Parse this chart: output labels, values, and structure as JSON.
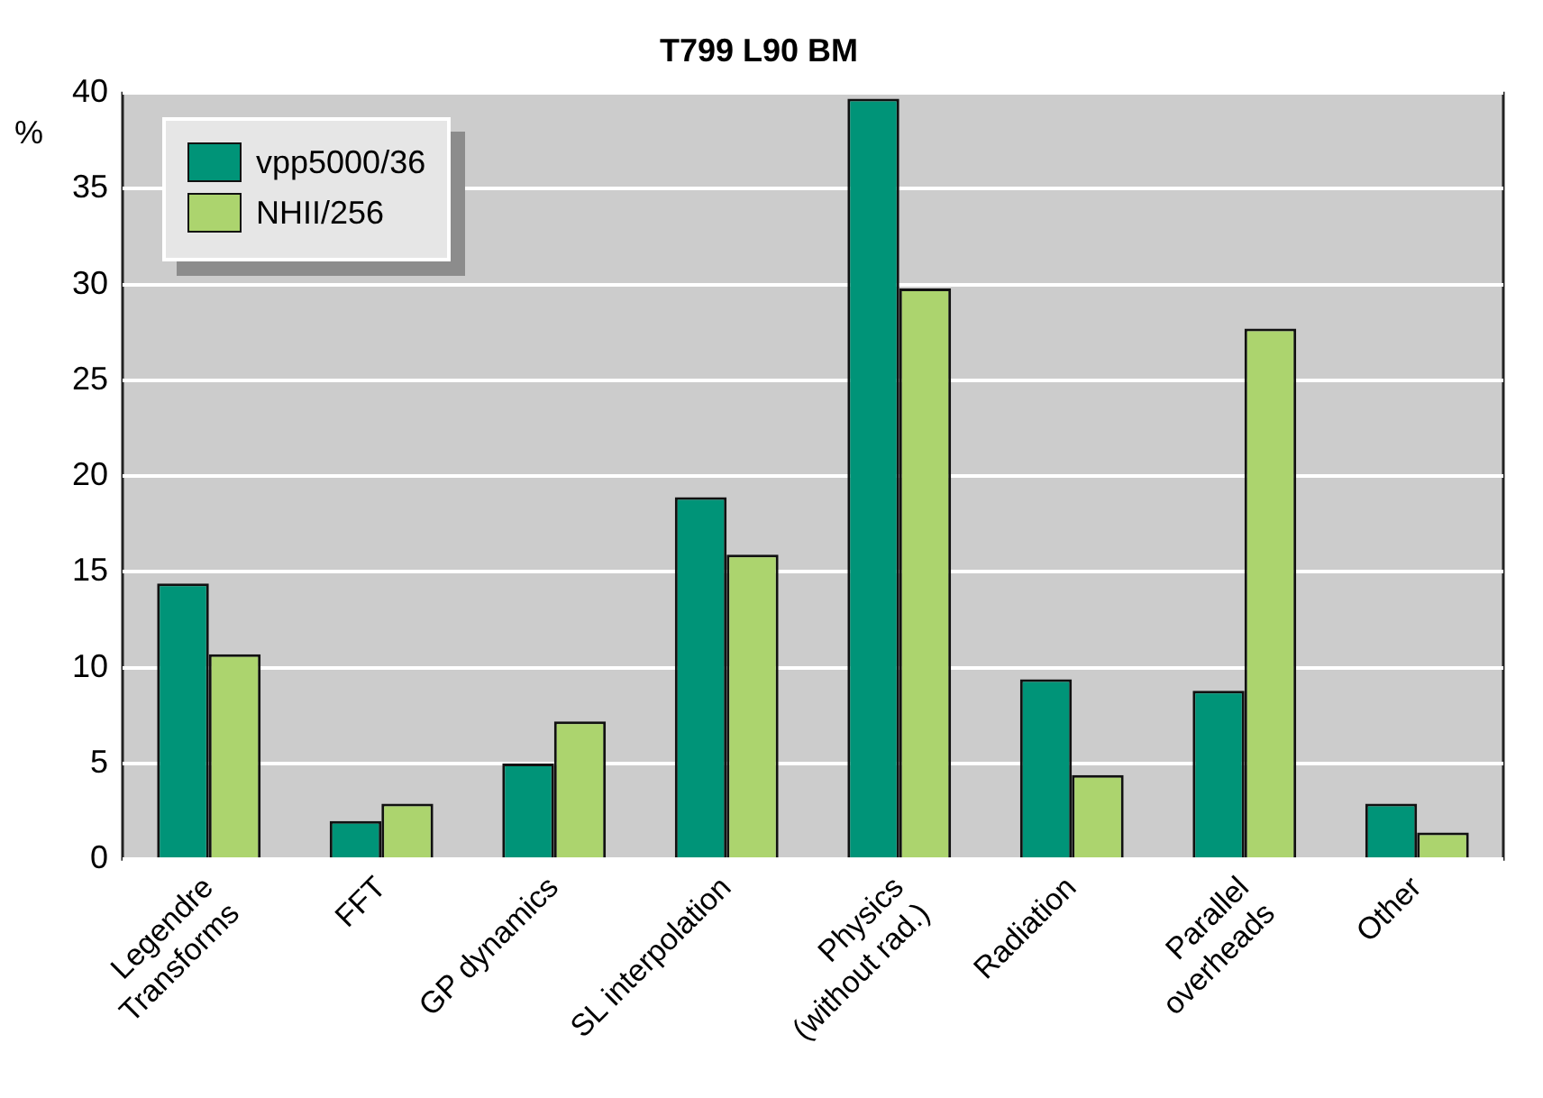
{
  "chart_data": {
    "type": "bar",
    "title": "T799 L90 BM",
    "ylabel": "%",
    "categories": [
      "Legendre\nTransforms",
      "FFT",
      "GP dynamics",
      "SL interpolation",
      "Physics\n(without rad.)",
      "Radiation",
      "Parallel\noverheads",
      "Other"
    ],
    "series": [
      {
        "name": "vpp5000/36",
        "color": "#009478",
        "values": [
          14.4,
          2.0,
          5.0,
          18.9,
          39.7,
          9.4,
          8.8,
          2.9
        ]
      },
      {
        "name": "NHII/256",
        "color": "#acd46e",
        "values": [
          10.7,
          2.9,
          7.2,
          15.9,
          29.8,
          4.4,
          27.7,
          1.4
        ]
      }
    ],
    "ylim": [
      0,
      40
    ],
    "yticks": [
      0,
      5,
      10,
      15,
      20,
      25,
      30,
      35,
      40
    ],
    "grid": "y",
    "legend": "top left"
  }
}
